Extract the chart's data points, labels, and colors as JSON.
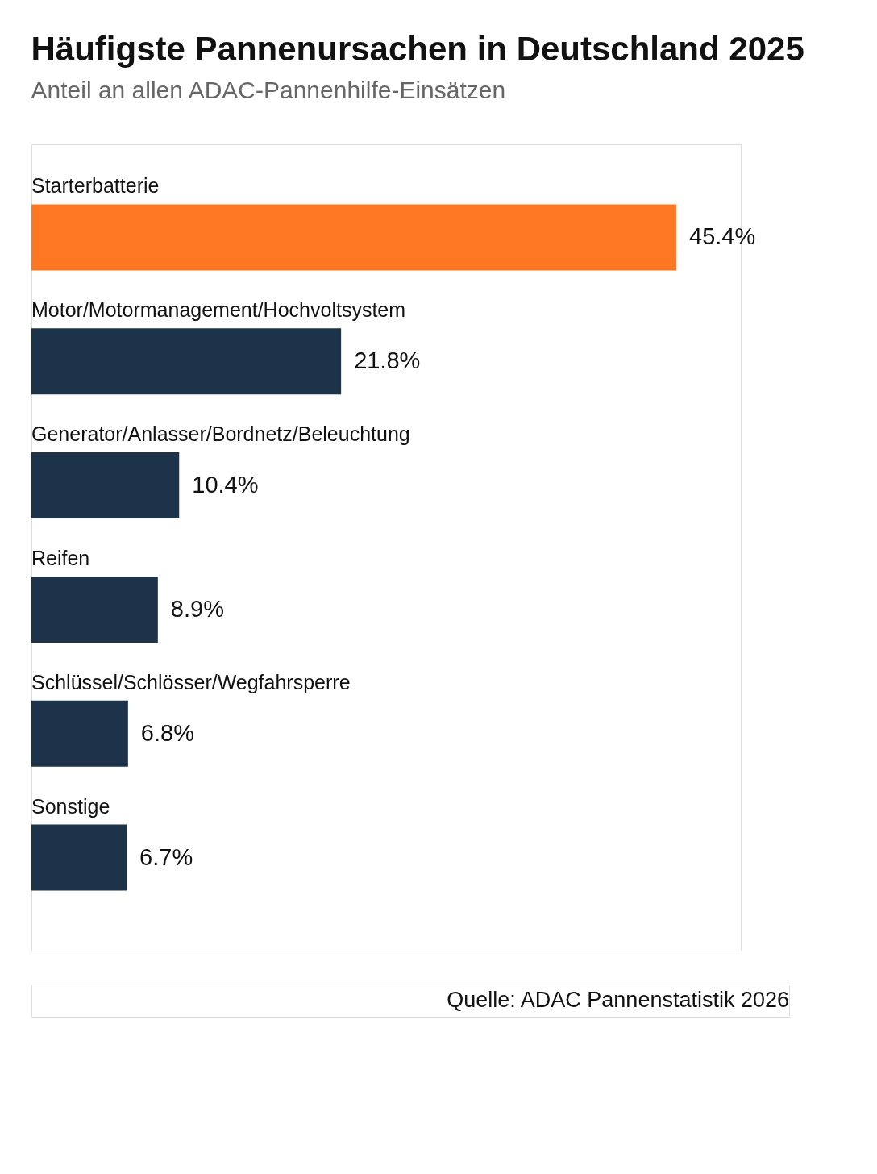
{
  "chart_data": {
    "type": "bar",
    "orientation": "horizontal",
    "title": "Häufigste Pannenursachen in Deutschland 2025",
    "subtitle": "Anteil an allen ADAC-Pannenhilfe-Einsätzen",
    "categories": [
      "Starterbatterie",
      "Motor/Motormanagement/Hochvoltsystem",
      "Generator/Anlasser/Bordnetz/Beleuchtung",
      "Reifen",
      "Schlüssel/Schlösser/Wegfahrsperre",
      "Sonstige"
    ],
    "values": [
      45.4,
      21.8,
      10.4,
      8.9,
      6.8,
      6.7
    ],
    "colors": [
      "#ff7722",
      "#1c3349",
      "#1c3349",
      "#1c3349",
      "#1c3349",
      "#1c3349"
    ],
    "value_labels": [
      "45.4%",
      "21.8%",
      "10.4%",
      "8.9%",
      "6.8%",
      "6.7%"
    ],
    "annotations": [
      "Quelle: ADAC Pannenstatistik 2026"
    ],
    "grid": false,
    "legend": false
  }
}
